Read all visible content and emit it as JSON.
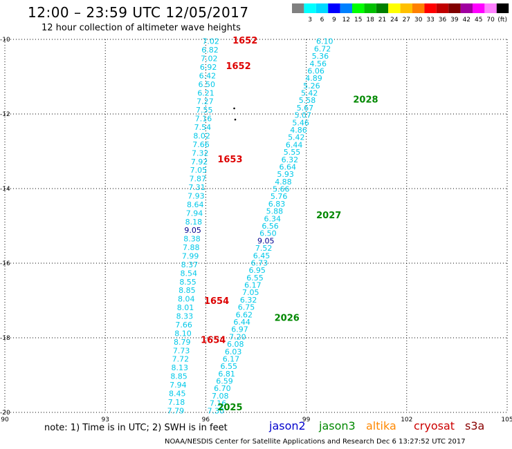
{
  "title": "12:00 – 23:59 UTC 12/05/2017",
  "subtitle": "12 hour collection of altimeter wave heights",
  "legend": {
    "unit": "(ft)",
    "bins": [
      {
        "label": "",
        "color": "#808080"
      },
      {
        "label": "3",
        "color": "#00ffff"
      },
      {
        "label": "6",
        "color": "#00d8ff"
      },
      {
        "label": "9",
        "color": "#0000ff"
      },
      {
        "label": "12",
        "color": "#0080ff"
      },
      {
        "label": "15",
        "color": "#00ff00"
      },
      {
        "label": "18",
        "color": "#00c000"
      },
      {
        "label": "21",
        "color": "#008000"
      },
      {
        "label": "24",
        "color": "#ffff00"
      },
      {
        "label": "27",
        "color": "#ffc000"
      },
      {
        "label": "30",
        "color": "#ff8000"
      },
      {
        "label": "33",
        "color": "#ff0000"
      },
      {
        "label": "36",
        "color": "#c00000"
      },
      {
        "label": "39",
        "color": "#800000"
      },
      {
        "label": "42",
        "color": "#a000a0"
      },
      {
        "label": "45",
        "color": "#ff00ff"
      },
      {
        "label": "70",
        "color": "#ff80ff"
      },
      {
        "label": "",
        "color": "#000000"
      }
    ]
  },
  "footer": {
    "note": "note:  1) Time is in UTC;  2) SWH is in feet",
    "satellites": [
      {
        "name": "jason2",
        "color": "#0000cc"
      },
      {
        "name": "jason3",
        "color": "#008800"
      },
      {
        "name": "altika",
        "color": "#ff8800"
      },
      {
        "name": "cryosat",
        "color": "#cc0000"
      },
      {
        "name": "s3a",
        "color": "#880000"
      }
    ],
    "credit": "NOAA/NESDIS Center for Satellite Applications and Research     Dec  6 13:27:52 UTC 2017"
  },
  "chart_data": {
    "type": "scatter",
    "xlim": [
      90,
      105
    ],
    "ylim": [
      -20,
      -10
    ],
    "xticks": [
      90,
      93,
      96,
      99,
      102,
      105
    ],
    "yticks": [
      -10,
      -12,
      -14,
      -16,
      -18,
      -20
    ],
    "grid": true,
    "colors": {
      "cyan": "#00c8e8",
      "dark": "#000090",
      "red": "#dd0000",
      "green": "#008800"
    },
    "tracks": [
      {
        "name": "west-track",
        "start": [
          96.15,
          -10.05
        ],
        "end": [
          95.1,
          -19.95
        ],
        "values": [
          "7.02",
          "6.82",
          "7.02",
          "6.92",
          "6.42",
          "6.50",
          "6.21",
          "7.27",
          "7.55",
          "7.16",
          "7.54",
          "8.02",
          "7.66",
          "7.32",
          "7.92",
          "7.05",
          "7.87",
          "7.31",
          "7.93",
          "8.64",
          "7.94",
          "8.18",
          "9.05",
          "8.38",
          "7.88",
          "7.99",
          "8.37",
          "8.54",
          "8.55",
          "8.85",
          "8.04",
          "8.01",
          "8.33",
          "7.66",
          "8.10",
          "8.79",
          "7.73",
          "7.72",
          "8.13",
          "8.85",
          "7.94",
          "8.45",
          "7.18",
          "7.79"
        ],
        "dark_values": [
          "9.05"
        ]
      },
      {
        "name": "east-track",
        "start": [
          99.55,
          -10.05
        ],
        "end": [
          96.3,
          -19.95
        ],
        "values": [
          "6.10",
          "6.72",
          "5.36",
          "4.56",
          "6.06",
          "4.89",
          "5.26",
          "5.42",
          "5.58",
          "5.67",
          "5.07",
          "5.46",
          "4.86",
          "5.42",
          "6.44",
          "5.55",
          "6.32",
          "6.64",
          "5.93",
          "4.88",
          "5.66",
          "5.76",
          "6.83",
          "5.88",
          "6.34",
          "6.56",
          "6.50",
          "9.05",
          "7.52",
          "6.45",
          "6.73",
          "6.95",
          "6.55",
          "6.17",
          "7.05",
          "6.32",
          "6.75",
          "6.62",
          "6.44",
          "6.97",
          "7.20",
          "6.08",
          "6.03",
          "6.17",
          "6.55",
          "6.81",
          "6.59",
          "6.70",
          "7.08",
          "7.16",
          "7.30"
        ],
        "dark_values": [
          "9.05"
        ]
      }
    ],
    "time_labels": [
      {
        "text": "1652",
        "x": 96.8,
        "y": -10.02,
        "color": "red"
      },
      {
        "text": "1652",
        "x": 96.6,
        "y": -10.7,
        "color": "red"
      },
      {
        "text": "1653",
        "x": 96.35,
        "y": -13.2,
        "color": "red"
      },
      {
        "text": "1654",
        "x": 95.95,
        "y": -17.0,
        "color": "red"
      },
      {
        "text": "1654",
        "x": 95.85,
        "y": -18.05,
        "color": "red"
      },
      {
        "text": "2028",
        "x": 100.4,
        "y": -11.6,
        "color": "green"
      },
      {
        "text": "2027",
        "x": 99.3,
        "y": -14.7,
        "color": "green"
      },
      {
        "text": "2026",
        "x": 98.05,
        "y": -17.45,
        "color": "green"
      },
      {
        "text": "2025",
        "x": 96.35,
        "y": -19.85,
        "color": "green"
      }
    ],
    "stray_points": [
      [
        96.85,
        -11.85
      ],
      [
        96.88,
        -12.15
      ]
    ]
  }
}
